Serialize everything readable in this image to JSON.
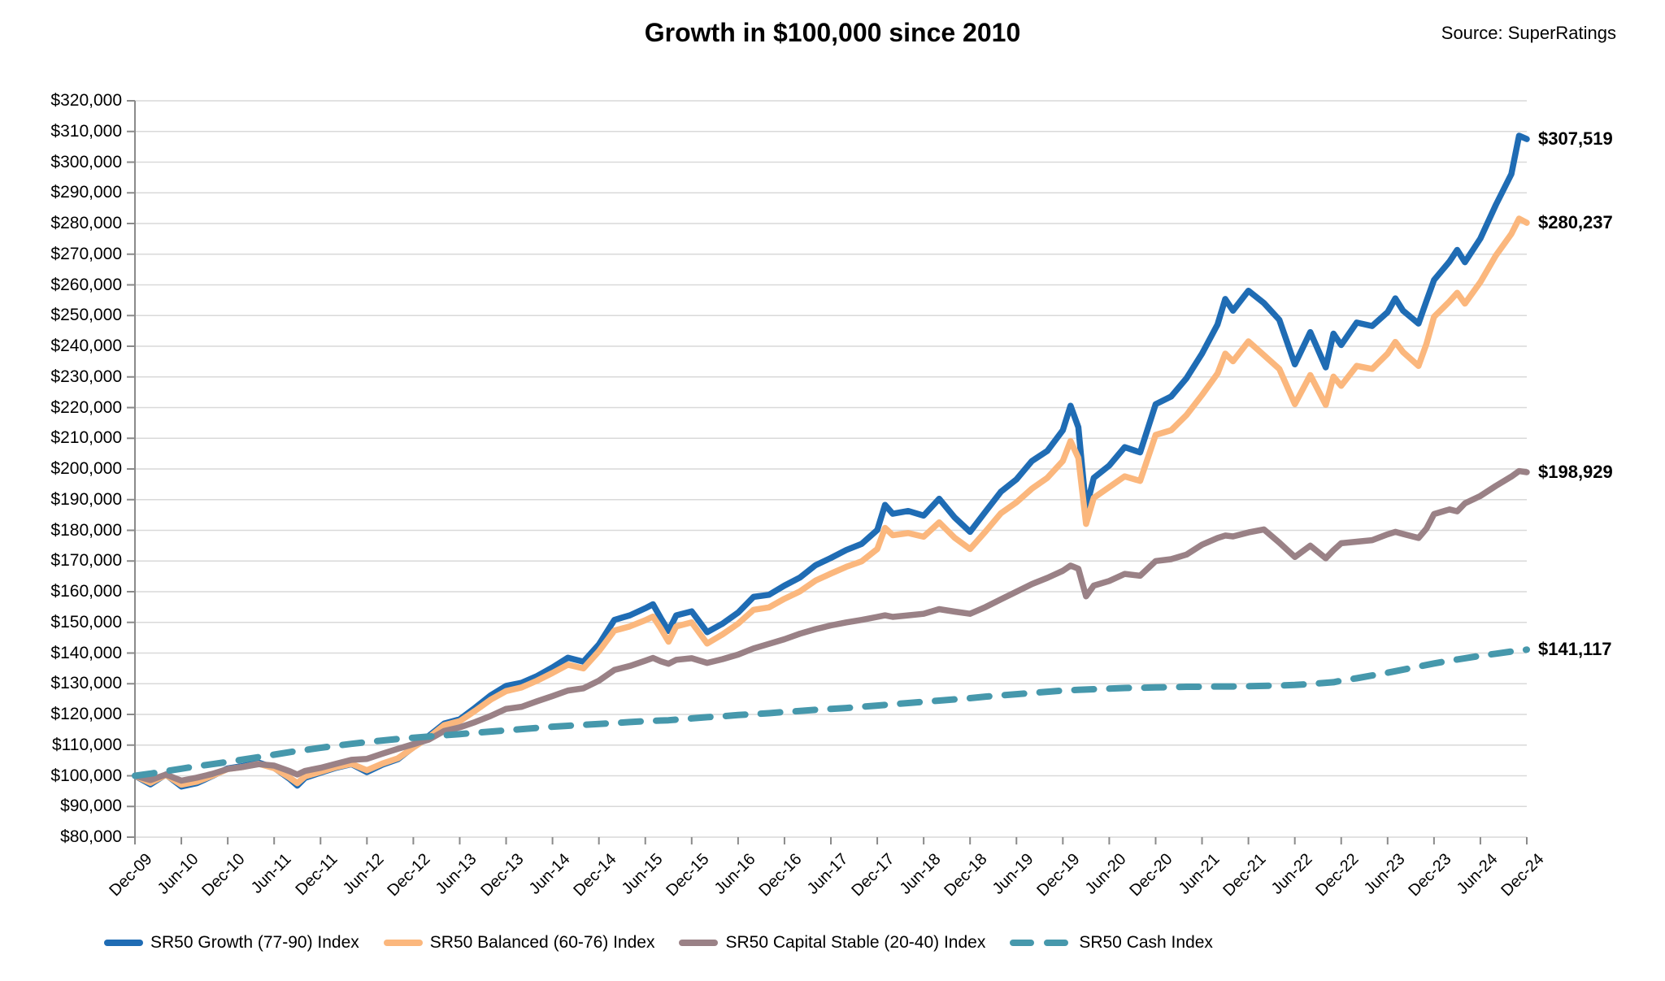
{
  "header": {
    "title": "Growth in $100,000 since 2010",
    "source": "Source: SuperRatings"
  },
  "chart_data": {
    "type": "line",
    "title": "Growth in $100,000 since 2010",
    "xlabel": "",
    "ylabel": "",
    "ylim": [
      80000,
      320000
    ],
    "y_step": 10000,
    "grid": "horizontal",
    "legend_position": "bottom",
    "axis_color": "#8a8a8a",
    "gridline_color": "#d9d9d9",
    "y_tick_labels": [
      "$80,000",
      "$90,000",
      "$100,000",
      "$110,000",
      "$120,000",
      "$130,000",
      "$140,000",
      "$150,000",
      "$160,000",
      "$170,000",
      "$180,000",
      "$190,000",
      "$200,000",
      "$210,000",
      "$220,000",
      "$230,000",
      "$240,000",
      "$250,000",
      "$260,000",
      "$270,000",
      "$280,000",
      "$290,000",
      "$300,000",
      "$310,000",
      "$320,000"
    ],
    "x_tick_labels": [
      "Dec-09",
      "Jun-10",
      "Dec-10",
      "Jun-11",
      "Dec-11",
      "Jun-12",
      "Dec-12",
      "Jun-13",
      "Dec-13",
      "Jun-14",
      "Dec-14",
      "Jun-15",
      "Dec-15",
      "Jun-16",
      "Dec-16",
      "Jun-17",
      "Dec-17",
      "Jun-18",
      "Dec-18",
      "Jun-19",
      "Dec-19",
      "Jun-20",
      "Dec-20",
      "Jun-21",
      "Dec-21",
      "Jun-22",
      "Dec-22",
      "Jun-23",
      "Dec-23",
      "Jun-24",
      "Dec-24"
    ],
    "x_months_since_dec09": [
      0,
      2,
      4,
      6,
      8,
      10,
      12,
      14,
      16,
      18,
      20,
      21,
      22,
      24,
      26,
      28,
      30,
      32,
      34,
      36,
      38,
      40,
      42,
      44,
      46,
      48,
      50,
      52,
      54,
      56,
      58,
      60,
      62,
      64,
      66,
      67,
      68,
      69,
      70,
      72,
      74,
      76,
      78,
      80,
      82,
      84,
      86,
      88,
      90,
      92,
      94,
      96,
      97,
      98,
      100,
      102,
      104,
      106,
      108,
      110,
      112,
      114,
      116,
      118,
      120,
      121,
      122,
      123,
      124,
      126,
      128,
      130,
      132,
      134,
      136,
      138,
      140,
      141,
      142,
      144,
      146,
      148,
      150,
      152,
      154,
      155,
      156,
      158,
      160,
      162,
      163,
      164,
      166,
      167,
      168,
      170,
      171,
      172,
      174,
      176,
      178,
      179,
      180
    ],
    "x_range_months": 180,
    "series": [
      {
        "name": "SR50 Growth (77-90) Index",
        "color": "#1f6cb4",
        "style": "solid",
        "end_label": "$307,519",
        "end_value": 307519,
        "values": [
          100000,
          97200,
          100400,
          96500,
          97600,
          99900,
          102400,
          103200,
          104300,
          102600,
          99000,
          96800,
          99300,
          101000,
          102600,
          103800,
          101200,
          103600,
          105400,
          109300,
          113000,
          117000,
          118400,
          122200,
          126200,
          129300,
          130300,
          132500,
          135300,
          138500,
          137200,
          142800,
          150800,
          152300,
          154600,
          155900,
          151400,
          147200,
          152300,
          153600,
          146800,
          149600,
          153200,
          158300,
          159000,
          162000,
          164600,
          168600,
          171000,
          173600,
          175600,
          180100,
          188300,
          185400,
          186300,
          184800,
          190300,
          184200,
          179500,
          186100,
          192600,
          196600,
          202600,
          205900,
          212600,
          220600,
          213600,
          187100,
          197100,
          201100,
          207100,
          205400,
          221100,
          223600,
          229600,
          237600,
          247100,
          255400,
          251600,
          258100,
          254100,
          248600,
          234100,
          244600,
          233100,
          244100,
          240400,
          247700,
          246600,
          251100,
          255600,
          251600,
          247400,
          254600,
          261600,
          267600,
          271400,
          267400,
          275100,
          286100,
          296100,
          308600,
          307519
        ]
      },
      {
        "name": "SR50 Balanced (60-76) Index",
        "color": "#fbb77d",
        "style": "solid",
        "end_label": "$280,237",
        "end_value": 280237,
        "values": [
          100000,
          97700,
          100300,
          97100,
          98100,
          100000,
          102200,
          102900,
          103900,
          102500,
          99400,
          97600,
          99800,
          101300,
          102800,
          103900,
          101800,
          104000,
          105700,
          109200,
          112500,
          116500,
          117800,
          121200,
          124800,
          127600,
          128800,
          131000,
          133500,
          136200,
          135000,
          140600,
          147300,
          148700,
          150700,
          151900,
          148000,
          143700,
          148700,
          150000,
          143100,
          146100,
          149600,
          154100,
          154900,
          157700,
          160100,
          163600,
          165900,
          168100,
          169900,
          173900,
          180800,
          178400,
          179100,
          177900,
          182600,
          177600,
          173900,
          179600,
          185600,
          189100,
          193600,
          197100,
          202600,
          209100,
          203600,
          182100,
          190600,
          194100,
          197600,
          196100,
          211100,
          212600,
          217600,
          224100,
          231100,
          237600,
          235100,
          241600,
          237100,
          232600,
          221100,
          230600,
          220900,
          230100,
          227100,
          233600,
          232600,
          237600,
          241400,
          238100,
          233600,
          240600,
          249600,
          254600,
          257400,
          253900,
          260900,
          269600,
          276600,
          281600,
          280237
        ]
      },
      {
        "name": "SR50 Capital Stable (20-40) Index",
        "color": "#9a8186",
        "style": "solid",
        "end_label": "$198,929",
        "end_value": 198929,
        "values": [
          100000,
          98600,
          100400,
          98400,
          99400,
          100600,
          102200,
          102900,
          103800,
          103300,
          101500,
          100400,
          101600,
          102600,
          103900,
          105200,
          105500,
          107200,
          108800,
          110300,
          111800,
          114600,
          115800,
          117500,
          119500,
          121800,
          122500,
          124300,
          126000,
          127800,
          128500,
          131000,
          134500,
          135800,
          137500,
          138400,
          137300,
          136500,
          137800,
          138300,
          136800,
          138000,
          139500,
          141500,
          143000,
          144500,
          146300,
          147800,
          149000,
          150000,
          150800,
          151800,
          152300,
          151800,
          152300,
          152800,
          154300,
          153500,
          152800,
          155000,
          157500,
          160000,
          162500,
          164500,
          166800,
          168500,
          167500,
          158500,
          162000,
          163500,
          165800,
          165200,
          170000,
          170600,
          172100,
          175300,
          177500,
          178300,
          178000,
          179300,
          180300,
          176000,
          171300,
          175000,
          170900,
          173500,
          175800,
          176300,
          176800,
          178700,
          179500,
          178800,
          177500,
          180500,
          185300,
          186800,
          186200,
          188800,
          191200,
          194500,
          197500,
          199300,
          198929
        ]
      },
      {
        "name": "SR50 Cash Index",
        "color": "#4698ac",
        "style": "dashed",
        "end_label": "$141,117",
        "end_value": 141117,
        "values": [
          100000,
          100700,
          101500,
          102300,
          103100,
          103800,
          104500,
          105300,
          106100,
          106900,
          107700,
          108100,
          108400,
          109100,
          109800,
          110400,
          111000,
          111500,
          112000,
          112400,
          112800,
          113200,
          113600,
          114000,
          114400,
          114800,
          115200,
          115600,
          116000,
          116300,
          116600,
          116900,
          117200,
          117500,
          117800,
          117900,
          118000,
          118100,
          118300,
          118700,
          119100,
          119400,
          119800,
          120100,
          120400,
          120800,
          121100,
          121500,
          121800,
          122100,
          122500,
          122900,
          123100,
          123300,
          123700,
          124100,
          124500,
          124900,
          125300,
          125800,
          126200,
          126600,
          127000,
          127400,
          127800,
          127900,
          128000,
          128100,
          128200,
          128400,
          128600,
          128700,
          128800,
          128900,
          129000,
          129000,
          129100,
          129100,
          129100,
          129200,
          129300,
          129400,
          129600,
          129900,
          130300,
          130500,
          131000,
          131800,
          132700,
          133600,
          134100,
          134600,
          135600,
          136100,
          136600,
          137500,
          137900,
          138300,
          139100,
          139800,
          140500,
          140800,
          141117
        ]
      }
    ]
  }
}
